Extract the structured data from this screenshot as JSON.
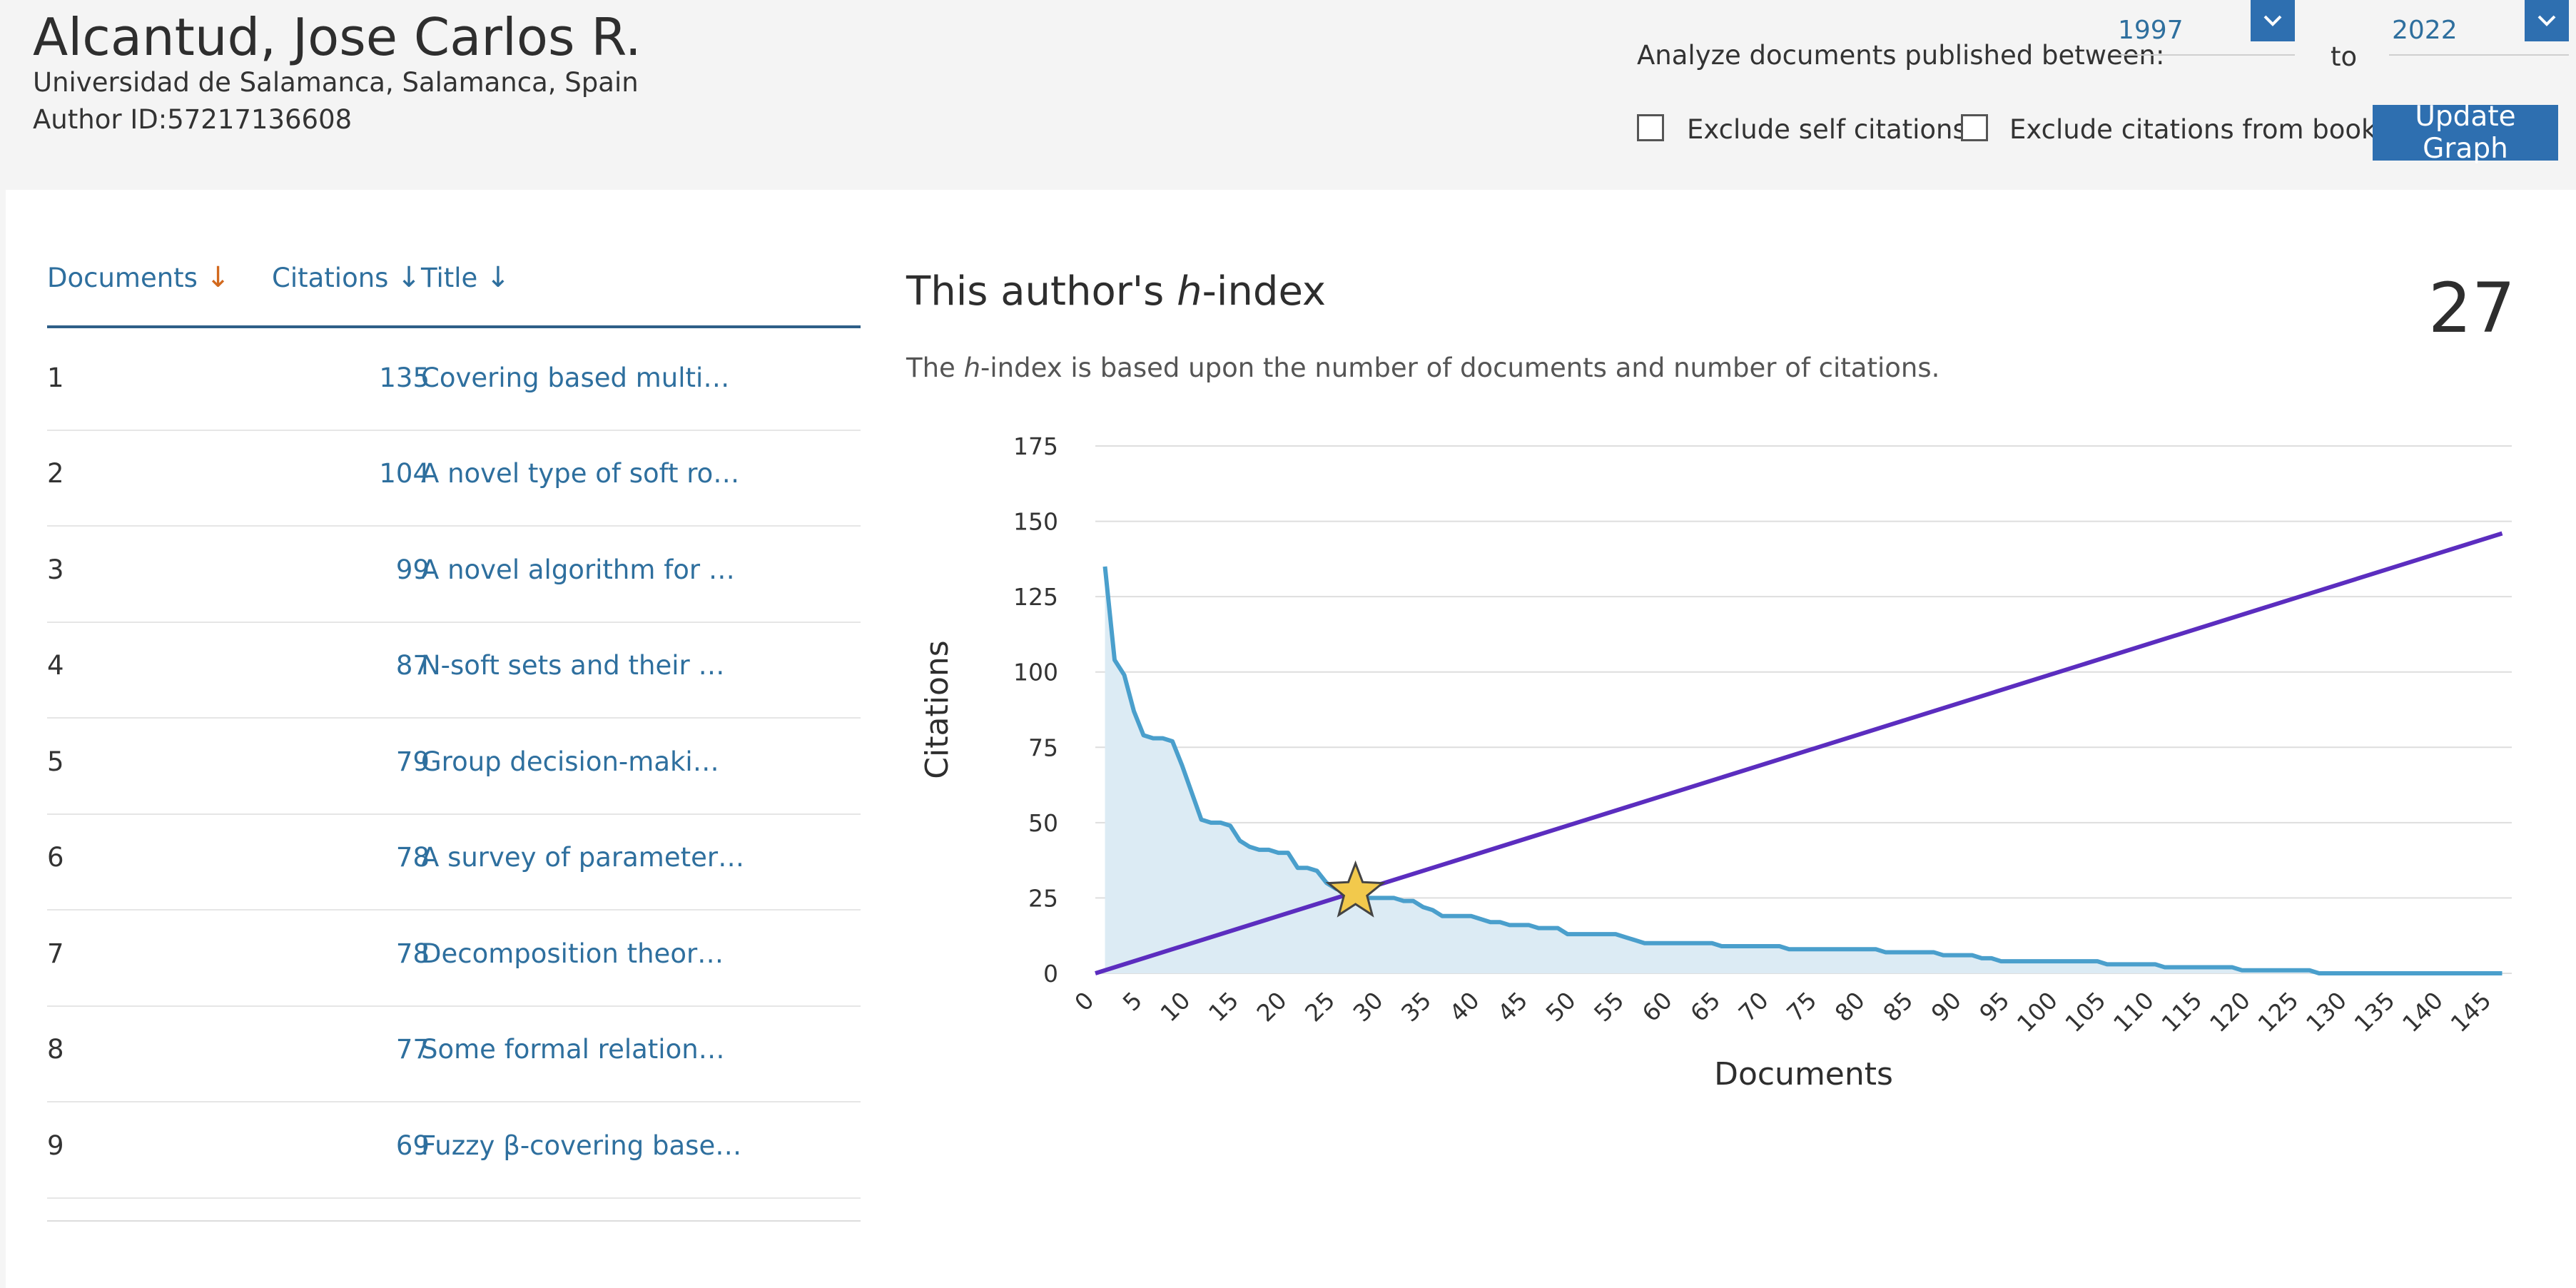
{
  "author": {
    "name": "Alcantud, Jose Carlos R.",
    "affiliation": "Universidad de Salamanca, Salamanca, Spain",
    "id_text": "Author ID:57217136608"
  },
  "filters": {
    "range_label": "Analyze documents published between:",
    "from_year": "1997",
    "to_label": "to",
    "to_year": "2022",
    "exclude_self": "Exclude self citations",
    "exclude_books": "Exclude citations from books",
    "update_button": "Update Graph"
  },
  "table": {
    "headers": {
      "documents": "Documents",
      "citations": "Citations",
      "title": "Title"
    },
    "rows": [
      {
        "rank": "1",
        "citations": "135",
        "title": "Covering based multi…"
      },
      {
        "rank": "2",
        "citations": "104",
        "title": "A novel type of soft ro…"
      },
      {
        "rank": "3",
        "citations": "99",
        "title": "A novel algorithm for …"
      },
      {
        "rank": "4",
        "citations": "87",
        "title": "N-soft sets and their …"
      },
      {
        "rank": "5",
        "citations": "79",
        "title": "Group decision-maki…"
      },
      {
        "rank": "6",
        "citations": "78",
        "title": "A survey of parameter…"
      },
      {
        "rank": "7",
        "citations": "78",
        "title": "Decomposition theor…"
      },
      {
        "rank": "8",
        "citations": "77",
        "title": "Some formal relation…"
      },
      {
        "rank": "9",
        "citations": "69",
        "title": "Fuzzy β-covering base…"
      }
    ]
  },
  "hindex": {
    "title_pre": "This author's ",
    "title_h": "h",
    "title_post": "-index",
    "value": "27",
    "desc_pre": "The ",
    "desc_h": "h",
    "desc_post": "-index is based upon the number of documents and number of citations."
  },
  "colors": {
    "accent": "#2e6fb0",
    "link": "#2e6f9e",
    "citation_line": "#4a9fcc",
    "citation_fill": "#dcebf4",
    "diagonal": "#5b2dbf",
    "star": "#f2c94c"
  },
  "chart_data": {
    "type": "area",
    "xlabel": "Documents",
    "ylabel": "Citations",
    "xlim": [
      0,
      147
    ],
    "ylim": [
      0,
      175
    ],
    "xticks": [
      0,
      5,
      10,
      15,
      20,
      25,
      30,
      35,
      40,
      45,
      50,
      55,
      60,
      65,
      70,
      75,
      80,
      85,
      90,
      95,
      100,
      105,
      110,
      115,
      120,
      125,
      130,
      135,
      140,
      145
    ],
    "yticks": [
      0,
      25,
      50,
      75,
      100,
      125,
      150,
      175
    ],
    "grid": true,
    "series": [
      {
        "values": [
          135,
          104,
          99,
          87,
          79,
          78,
          78,
          77,
          69,
          60,
          51,
          50,
          50,
          49,
          44,
          42,
          41,
          41,
          40,
          40,
          35,
          35,
          34,
          30,
          28,
          27,
          27,
          25,
          25,
          25,
          25,
          24,
          24,
          22,
          21,
          19,
          19,
          19,
          19,
          18,
          17,
          17,
          16,
          16,
          16,
          15,
          15,
          15,
          13,
          13,
          13,
          13,
          13,
          13,
          12,
          11,
          10,
          10,
          10,
          10,
          10,
          10,
          10,
          10,
          9,
          9,
          9,
          9,
          9,
          9,
          9,
          8,
          8,
          8,
          8,
          8,
          8,
          8,
          8,
          8,
          8,
          7,
          7,
          7,
          7,
          7,
          7,
          6,
          6,
          6,
          6,
          5,
          5,
          4,
          4,
          4,
          4,
          4,
          4,
          4,
          4,
          4,
          4,
          4,
          3,
          3,
          3,
          3,
          3,
          3,
          2,
          2,
          2,
          2,
          2,
          2,
          2,
          2,
          1,
          1,
          1,
          1,
          1,
          1,
          1,
          1,
          0,
          0,
          0,
          0,
          0,
          0,
          0,
          0,
          0,
          0,
          0,
          0,
          0,
          0,
          0,
          0,
          0,
          0,
          0,
          0
        ]
      },
      {
        "values_from": "x",
        "x": [
          0,
          146
        ],
        "y": [
          0,
          146
        ]
      }
    ],
    "marker": {
      "shape": "star",
      "x": 27,
      "y": 27
    }
  }
}
